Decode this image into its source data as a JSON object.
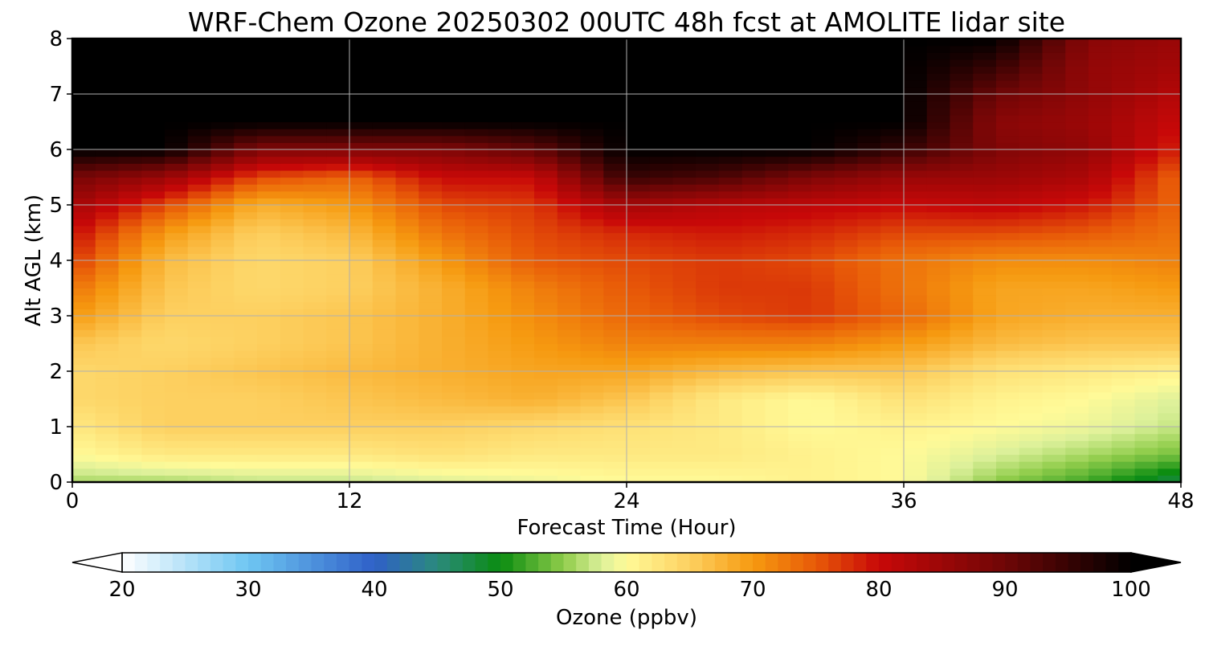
{
  "chart_data": {
    "type": "heatmap",
    "title": "WRF-Chem Ozone  20250302 00UTC 48h fcst at AMOLITE lidar site",
    "xlabel": "Forecast Time (Hour)",
    "ylabel": "Alt AGL (km)",
    "xlim": [
      0,
      48
    ],
    "ylim": [
      0,
      8
    ],
    "xticks": [
      0,
      12,
      24,
      36,
      48
    ],
    "yticks": [
      0,
      1,
      2,
      3,
      4,
      5,
      6,
      7,
      8
    ],
    "grid": true,
    "x": [
      0,
      4,
      8,
      12,
      16,
      20,
      24,
      28,
      32,
      36,
      40,
      44,
      48
    ],
    "y": [
      0,
      0.5,
      1,
      1.5,
      2,
      2.5,
      3,
      3.5,
      4,
      4.5,
      5,
      5.5,
      6,
      6.5,
      7,
      7.5,
      8
    ],
    "z": [
      [
        56,
        56,
        57,
        57,
        58,
        59,
        60,
        60,
        61,
        60,
        55,
        52,
        47
      ],
      [
        60,
        62,
        62,
        62,
        63,
        62,
        62,
        62,
        61,
        60,
        58,
        56,
        54
      ],
      [
        62,
        65,
        65,
        65,
        65,
        64,
        63,
        62,
        60,
        61,
        60,
        59,
        57
      ],
      [
        64,
        65,
        65,
        66,
        67,
        68,
        66,
        62,
        60,
        63,
        61,
        60,
        58
      ],
      [
        64,
        65,
        66,
        67,
        68,
        69,
        69,
        67,
        66,
        66,
        63,
        62,
        61
      ],
      [
        66,
        64,
        65,
        66,
        68,
        70,
        72,
        72,
        72,
        70,
        67,
        66,
        66
      ],
      [
        70,
        65,
        65,
        66,
        68,
        71,
        74,
        76,
        77,
        74,
        69,
        68,
        68
      ],
      [
        73,
        66,
        64,
        65,
        68,
        72,
        75,
        77,
        77,
        73,
        69,
        69,
        70
      ],
      [
        77,
        67,
        64,
        65,
        70,
        75,
        76,
        77,
        76,
        73,
        71,
        71,
        72
      ],
      [
        80,
        70,
        65,
        67,
        73,
        76,
        78,
        79,
        78,
        76,
        76,
        75,
        73
      ],
      [
        84,
        76,
        68,
        70,
        76,
        77,
        84,
        82,
        81,
        80,
        81,
        79,
        74
      ],
      [
        89,
        85,
        76,
        74,
        80,
        80,
        95,
        93,
        88,
        85,
        85,
        83,
        74
      ],
      [
        100,
        100,
        88,
        88,
        88,
        91,
        100,
        100,
        100,
        95,
        88,
        86,
        78
      ],
      [
        100,
        100,
        100,
        100,
        100,
        100,
        100,
        100,
        100,
        100,
        87,
        85,
        80
      ],
      [
        100,
        100,
        100,
        100,
        100,
        100,
        100,
        100,
        100,
        100,
        90,
        86,
        82
      ],
      [
        100,
        100,
        100,
        100,
        100,
        100,
        100,
        100,
        100,
        100,
        95,
        86,
        84
      ],
      [
        100,
        100,
        100,
        100,
        100,
        100,
        100,
        100,
        100,
        100,
        100,
        87,
        85
      ]
    ],
    "colorbar": {
      "label": "Ozone  (ppbv)",
      "min": 20,
      "max": 100,
      "ticks": [
        20,
        30,
        40,
        50,
        60,
        70,
        80,
        90,
        100
      ],
      "extend": "both",
      "stops": [
        {
          "v": 20,
          "c": "#ffffff"
        },
        {
          "v": 30,
          "c": "#6ec6f2"
        },
        {
          "v": 40,
          "c": "#2f60c8"
        },
        {
          "v": 45,
          "c": "#2b8a7c"
        },
        {
          "v": 50,
          "c": "#0a8c10"
        },
        {
          "v": 55,
          "c": "#8fcc4a"
        },
        {
          "v": 58,
          "c": "#dcf09a"
        },
        {
          "v": 60,
          "c": "#fffa98"
        },
        {
          "v": 65,
          "c": "#fdd060"
        },
        {
          "v": 70,
          "c": "#f69a10"
        },
        {
          "v": 75,
          "c": "#e85a08"
        },
        {
          "v": 80,
          "c": "#c80808"
        },
        {
          "v": 90,
          "c": "#6e0606"
        },
        {
          "v": 100,
          "c": "#000000"
        }
      ]
    }
  }
}
